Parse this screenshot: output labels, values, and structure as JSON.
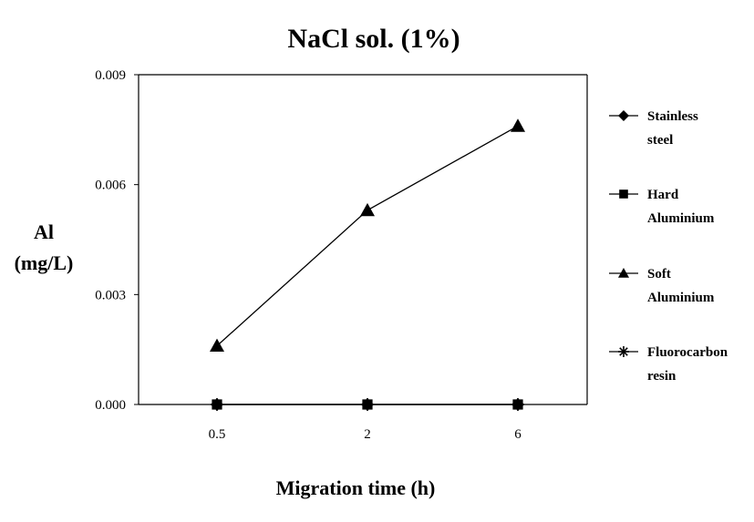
{
  "chart_data": {
    "type": "line",
    "title": "NaCl sol. (1%)",
    "xlabel": "Migration time (h)",
    "ylabel_lines": [
      "Al",
      "(mg/L)"
    ],
    "categories": [
      "0.5",
      "2",
      "6"
    ],
    "ylim": [
      0,
      0.009
    ],
    "yticks": [
      "0.000",
      "0.003",
      "0.006",
      "0.009"
    ],
    "grid": false,
    "legend_position": "right",
    "series": [
      {
        "name": "Stainless steel",
        "legend_lines": [
          "Stainless",
          "steel"
        ],
        "marker": "diamond",
        "values": [
          0,
          0,
          0
        ]
      },
      {
        "name": "Hard Aluminium",
        "legend_lines": [
          "Hard",
          "Aluminium"
        ],
        "marker": "square",
        "values": [
          0,
          0,
          0
        ]
      },
      {
        "name": "Soft Aluminium",
        "legend_lines": [
          "Soft",
          "Aluminium"
        ],
        "marker": "triangle",
        "values": [
          0.0016,
          0.0053,
          0.0076
        ]
      },
      {
        "name": "Fluorocarbon resin",
        "legend_lines": [
          "Fluorocarbon",
          "resin"
        ],
        "marker": "star",
        "values": [
          0,
          0,
          0
        ]
      }
    ],
    "colors": {
      "line": "#000000",
      "marker": "#000000",
      "axis": "#000000",
      "frame": "#000000"
    }
  }
}
